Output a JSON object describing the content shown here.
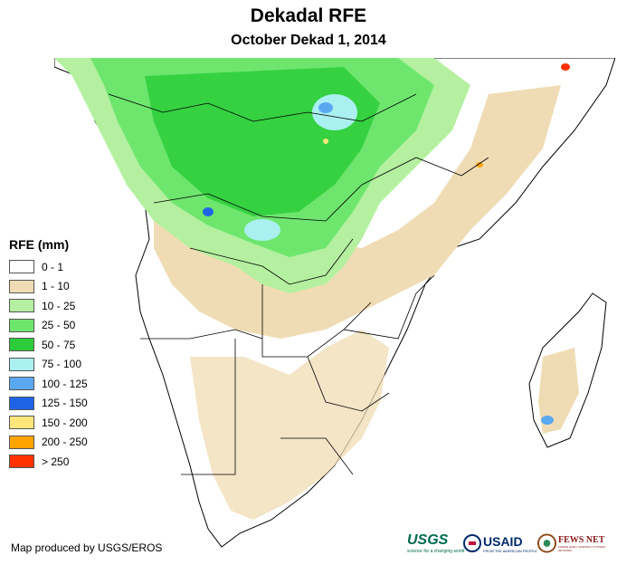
{
  "title": "Dekadal RFE",
  "subtitle": "October Dekad 1, 2014",
  "legend": {
    "title": "RFE (mm)",
    "items": [
      {
        "label": "0 - 1",
        "color": "#ffffff"
      },
      {
        "label": "1 - 10",
        "color": "#f0dcb4"
      },
      {
        "label": "10 - 25",
        "color": "#b4f0a0"
      },
      {
        "label": "25 - 50",
        "color": "#6ee66e"
      },
      {
        "label": "50 - 75",
        "color": "#2ccc3a"
      },
      {
        "label": "75 - 100",
        "color": "#aaf0f0"
      },
      {
        "label": "100 - 125",
        "color": "#5aa8f0"
      },
      {
        "label": "125 - 150",
        "color": "#1e64e6"
      },
      {
        "label": "150 - 200",
        "color": "#ffe67a"
      },
      {
        "label": "200 - 250",
        "color": "#ffa500"
      },
      {
        "label": "> 250",
        "color": "#ff3200"
      }
    ]
  },
  "credit": "Map produced by USGS/EROS",
  "logos": {
    "usgs": "USGS",
    "usgs_tagline": "science for a changing world",
    "usaid": "USAID",
    "usaid_tagline": "FROM THE AMERICAN PEOPLE",
    "fewsnet": "FEWS NET",
    "fewsnet_tagline": "FAMINE EARLY WARNING SYSTEMS NETWORK"
  }
}
